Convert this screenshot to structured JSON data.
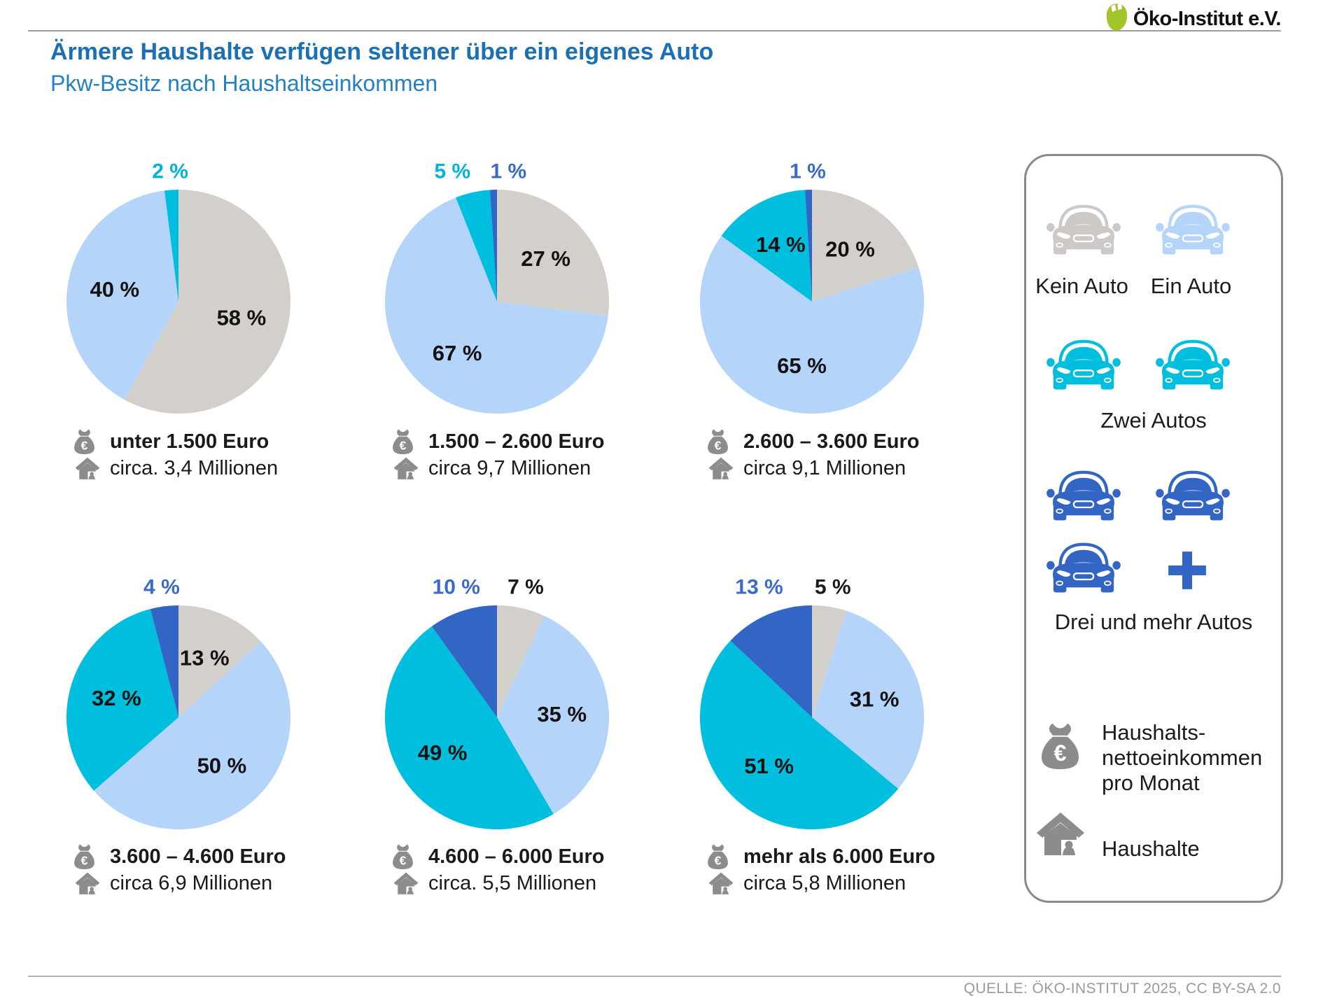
{
  "logo": {
    "name": "Öko-Institut e.V."
  },
  "header": {
    "title": "Ärmere Haushalte verfügen seltener über ein eigenes Auto",
    "subtitle": "Pkw-Besitz nach Haushaltseinkommen"
  },
  "colors": {
    "kein_auto_gray": "#d3d0cc",
    "ein_auto_lightblue": "#b5d4fa",
    "zwei_autos_cyan": "#00bedd",
    "drei_autos_blue": "#3365c5",
    "label_cyan": "#00b3dc",
    "label_blue": "#3a6bcb",
    "title_blue": "#1a6fb5",
    "subtitle_blue": "#2381c1",
    "icon_gray": "#8c8c8c",
    "legend_car_gray": "#cdc9c6",
    "logo_green": "#a3c52c"
  },
  "chart_data": {
    "type": "pie",
    "title": "Pkw-Besitz nach Haushaltseinkommen",
    "series_labels": [
      "Kein Auto",
      "Ein Auto",
      "Zwei Autos",
      "Drei und mehr Autos"
    ],
    "unit": "%",
    "pies": [
      {
        "income": "unter 1.500 Euro",
        "households": "circa. 3,4 Millionen",
        "values": [
          58,
          40,
          2,
          0
        ]
      },
      {
        "income": "1.500 – 2.600 Euro",
        "households": "circa 9,7 Millionen",
        "values": [
          27,
          67,
          5,
          1
        ]
      },
      {
        "income": "2.600 – 3.600 Euro",
        "households": "circa 9,1 Millionen",
        "values": [
          20,
          65,
          14,
          1
        ]
      },
      {
        "income": "3.600 – 4.600 Euro",
        "households": "circa 6,9 Millionen",
        "values": [
          13,
          50,
          32,
          4
        ]
      },
      {
        "income": "4.600 – 6.000 Euro",
        "households": "circa. 5,5 Millionen",
        "values": [
          7,
          35,
          49,
          10
        ]
      },
      {
        "income": "mehr als 6.000 Euro",
        "households": "circa 5,8 Millionen",
        "values": [
          5,
          31,
          51,
          13
        ]
      }
    ]
  },
  "legend": {
    "kein_auto": "Kein Auto",
    "ein_auto": "Ein Auto",
    "zwei_autos": "Zwei Autos",
    "drei_autos": "Drei und mehr Autos",
    "income_lines": [
      "Haushalts-",
      "nettoeinkommen",
      "pro Monat"
    ],
    "households": "Haushalte"
  },
  "footer": {
    "source": "QUELLE: ÖKO-INSTITUT 2025, CC BY-SA 2.0"
  }
}
